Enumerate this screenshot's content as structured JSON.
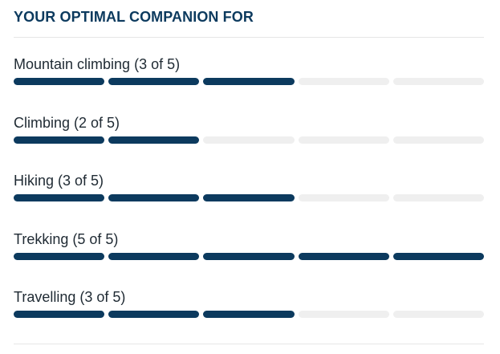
{
  "heading": "YOUR OPTIMAL COMPANION FOR",
  "colors": {
    "filled": "#0c3a5e",
    "empty": "#efefef",
    "heading": "#0c3a5e"
  },
  "ratings": [
    {
      "label": "Mountain climbing (3 of 5)",
      "score": 3,
      "max": 5
    },
    {
      "label": "Climbing (2 of 5)",
      "score": 2,
      "max": 5
    },
    {
      "label": "Hiking (3 of 5)",
      "score": 3,
      "max": 5
    },
    {
      "label": "Trekking (5 of 5)",
      "score": 5,
      "max": 5
    },
    {
      "label": "Travelling (3 of 5)",
      "score": 3,
      "max": 5
    }
  ]
}
